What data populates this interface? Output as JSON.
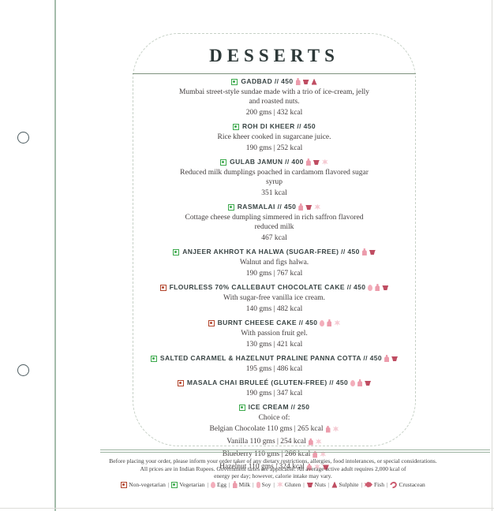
{
  "page": {
    "title": "DESSERTS",
    "footer": {
      "disclaimer_lines": [
        "Before placing your order, please inform your order taker of any dietary restrictions, allergies, food intolerances, or special considerations.",
        "All prices are in Indian Rupees. Government taxes are applicable. An average active adult requires 2,000 kcal of",
        "energy per day; however, calorie intake may vary."
      ],
      "legend": [
        {
          "icon": "non-veg-marker",
          "label": "Non-vegetarian"
        },
        {
          "icon": "veg-marker",
          "label": "Vegetarian"
        },
        {
          "icon": "egg",
          "label": "Egg"
        },
        {
          "icon": "milk",
          "label": "Milk"
        },
        {
          "icon": "soy",
          "label": "Soy"
        },
        {
          "icon": "gluten",
          "label": "Gluten"
        },
        {
          "icon": "nuts",
          "label": "Nuts"
        },
        {
          "icon": "sulphite",
          "label": "Sulphite"
        },
        {
          "icon": "fish",
          "label": "Fish"
        },
        {
          "icon": "crustacean",
          "label": "Crustacean"
        }
      ]
    }
  },
  "menu": {
    "items": [
      {
        "marker": "veg",
        "label": "GADBAD // 450",
        "allergens": [
          "milk",
          "nuts",
          "sulphite"
        ],
        "desc": "Mumbai street-style sundae made with a trio of ice-cream, jelly and roasted nuts.",
        "info": "200 gms | 432 kcal"
      },
      {
        "marker": "veg",
        "label": "ROH DI KHEER // 450",
        "allergens": [],
        "desc": "Rice kheer cooked in sugarcane juice.",
        "info": "190 gms | 252 kcal"
      },
      {
        "marker": "veg",
        "label": "GULAB JAMUN // 400",
        "allergens": [
          "milk",
          "nuts",
          "gluten"
        ],
        "desc": "Reduced milk dumplings poached in cardamom flavored sugar syrup",
        "info": "351 kcal"
      },
      {
        "marker": "veg",
        "label": "RASMALAI // 450",
        "allergens": [
          "milk",
          "nuts",
          "gluten"
        ],
        "desc": "Cottage cheese dumpling simmered in rich saffron flavored reduced milk",
        "info": "467 kcal"
      },
      {
        "marker": "veg",
        "label": "ANJEER AKHROT KA HALWA (SUGAR-FREE) // 450",
        "allergens": [
          "milk",
          "nuts"
        ],
        "desc": "Walnut and figs halwa.",
        "info": "190 gms | 767 kcal"
      },
      {
        "marker": "nonveg",
        "label": "FLOURLESS 70% CALLEBAUT CHOCOLATE CAKE // 450",
        "allergens": [
          "egg",
          "milk",
          "nuts"
        ],
        "desc": "With sugar-free vanilla ice cream.",
        "info": "140 gms | 482 kcal"
      },
      {
        "marker": "nonveg",
        "label": "BURNT CHEESE CAKE // 450",
        "allergens": [
          "egg",
          "milk",
          "gluten"
        ],
        "desc": "With passion fruit gel.",
        "info": "130 gms | 421 kcal"
      },
      {
        "marker": "veg",
        "label": "SALTED CARAMEL & HAZELNUT PRALINE PANNA COTTA // 450",
        "allergens": [
          "milk",
          "nuts"
        ],
        "info": "195 gms | 486 kcal"
      },
      {
        "marker": "nonveg",
        "label": "MASALA CHAI BRULEÉ (GLUTEN-FREE) // 450",
        "allergens": [
          "egg",
          "milk",
          "nuts"
        ],
        "info": "190 gms | 347 kcal"
      },
      {
        "marker": "veg",
        "label": "ICE CREAM // 250",
        "allergens": [],
        "sub": "Choice of:",
        "choices": [
          {
            "label": "Belgian Chocolate 110 gms | 265 kcal",
            "allergens": [
              "milk",
              "gluten"
            ]
          },
          {
            "label": "Vanilla 110 gms | 254 kcal",
            "allergens": [
              "milk",
              "gluten"
            ]
          },
          {
            "label": "Blueberry 110 gms | 266 kcal",
            "allergens": [
              "milk",
              "gluten"
            ]
          },
          {
            "label": "Hazelnut 110 gms | 324 kcal",
            "allergens": [
              "milk",
              "gluten",
              "nuts"
            ]
          }
        ]
      }
    ]
  },
  "colors": {
    "veg": "#3ca94c",
    "non_veg": "#b2452c",
    "rule_sage": "#9cb2a0",
    "title_ink": "#2d3838",
    "allergen_light_pink": "#f3aebb",
    "allergen_pink": "#ec9cac",
    "allergen_dark_rose": "#bf4d62"
  }
}
